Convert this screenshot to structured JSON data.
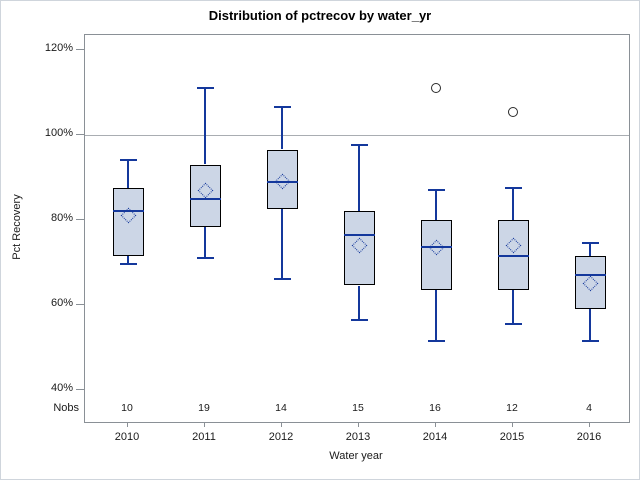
{
  "chart_data": {
    "type": "box",
    "title": "Distribution of pctrecov by water_yr",
    "xlabel": "Water year",
    "ylabel": "Pct Recovery",
    "nobs_label": "Nobs",
    "categories": [
      "2010",
      "2011",
      "2012",
      "2013",
      "2014",
      "2015",
      "2016"
    ],
    "nobs": [
      "10",
      "19",
      "14",
      "15",
      "16",
      "12",
      "4"
    ],
    "ytick_values": [
      120,
      100,
      80,
      60,
      40
    ],
    "ytick_labels": [
      "120%",
      "100%",
      "80%",
      "60%",
      "40%"
    ],
    "ylim": [
      32.4,
      123.5
    ],
    "grid": "off",
    "reference_line": 100,
    "series": [
      {
        "category": "2010",
        "min": 69.5,
        "q1": 71.5,
        "median": 82,
        "q3": 87.5,
        "max": 94,
        "mean": 81,
        "outliers": []
      },
      {
        "category": "2011",
        "min": 71,
        "q1": 78.5,
        "median": 85,
        "q3": 93,
        "max": 111,
        "mean": 87,
        "outliers": []
      },
      {
        "category": "2012",
        "min": 66,
        "q1": 82.5,
        "median": 89,
        "q3": 96.5,
        "max": 106.5,
        "mean": 89,
        "outliers": []
      },
      {
        "category": "2013",
        "min": 56.5,
        "q1": 64.5,
        "median": 76.5,
        "q3": 82,
        "max": 97.5,
        "mean": 74,
        "outliers": []
      },
      {
        "category": "2014",
        "min": 51.5,
        "q1": 63.5,
        "median": 73.5,
        "q3": 80,
        "max": 87,
        "mean": 73.5,
        "outliers": [
          111
        ]
      },
      {
        "category": "2015",
        "min": 55.5,
        "q1": 63.5,
        "median": 71.5,
        "q3": 80,
        "max": 87.5,
        "mean": 74,
        "outliers": [
          105.5
        ]
      },
      {
        "category": "2016",
        "min": 51.5,
        "q1": 59,
        "median": 67,
        "q3": 71.5,
        "max": 74.5,
        "mean": 65,
        "outliers": []
      }
    ],
    "colors": {
      "box_fill": "#ccd6e6",
      "box_border": "#000000",
      "line_blue": "#14389c",
      "axis_frame": "#8a9096",
      "reference_line": "#a9adb2",
      "outlier_border": "#2b2b2b",
      "text": "#1a1a1a",
      "outer_border": "#cfd5dc"
    }
  }
}
